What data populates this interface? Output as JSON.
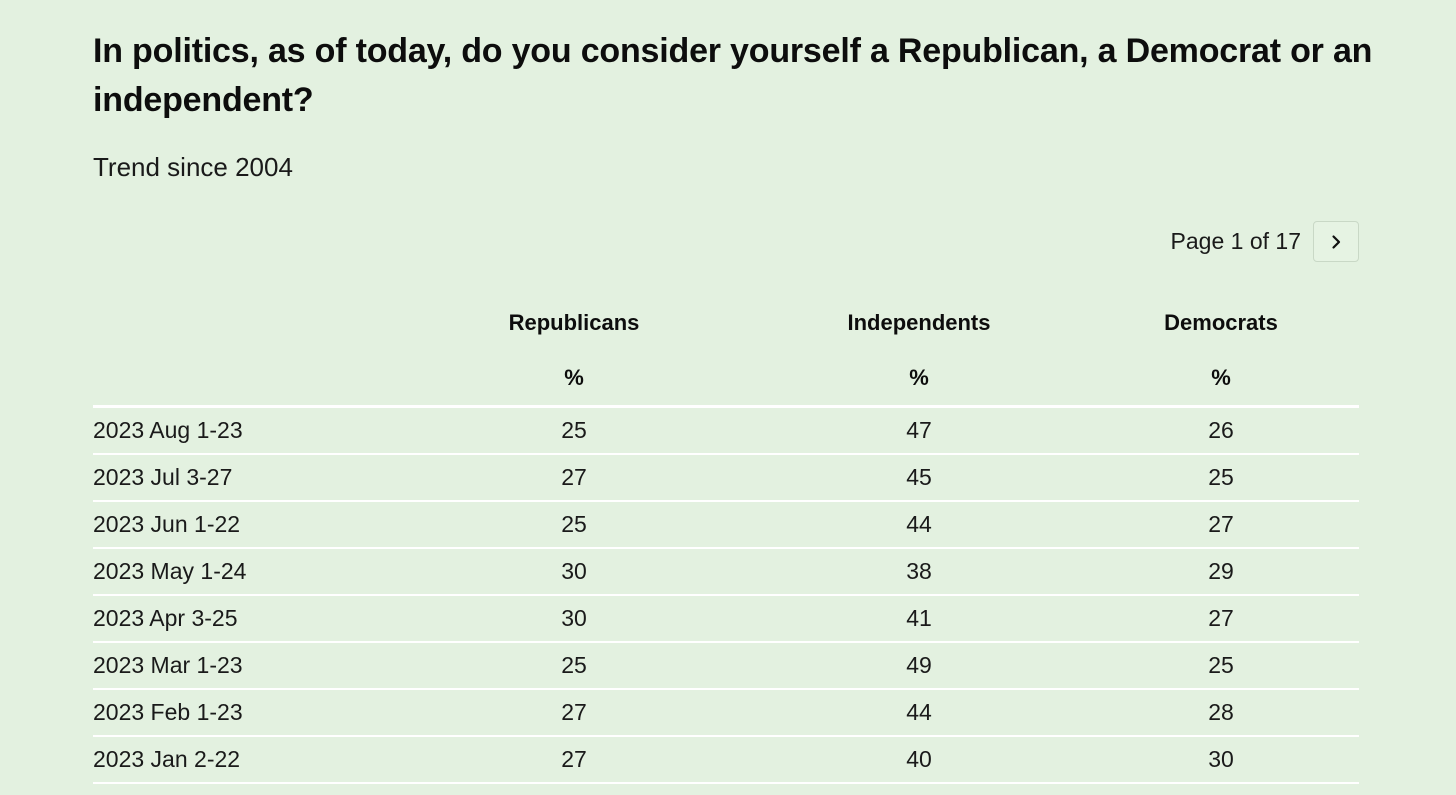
{
  "header": {
    "title": "In politics, as of today, do you consider yourself a Republican, a Democrat or an independent?",
    "subtitle": "Trend since 2004"
  },
  "pagination": {
    "label": "Page 1 of 17",
    "next_icon": "chevron-right-icon"
  },
  "table": {
    "columns": [
      "Republicans",
      "Independents",
      "Democrats"
    ],
    "unit": "%",
    "rows": [
      {
        "date": "2023 Aug 1-23",
        "republicans": "25",
        "independents": "47",
        "democrats": "26"
      },
      {
        "date": "2023 Jul 3-27",
        "republicans": "27",
        "independents": "45",
        "democrats": "25"
      },
      {
        "date": "2023 Jun 1-22",
        "republicans": "25",
        "independents": "44",
        "democrats": "27"
      },
      {
        "date": "2023 May 1-24",
        "republicans": "30",
        "independents": "38",
        "democrats": "29"
      },
      {
        "date": "2023 Apr 3-25",
        "republicans": "30",
        "independents": "41",
        "democrats": "27"
      },
      {
        "date": "2023 Mar 1-23",
        "republicans": "25",
        "independents": "49",
        "democrats": "25"
      },
      {
        "date": "2023 Feb 1-23",
        "republicans": "27",
        "independents": "44",
        "democrats": "28"
      },
      {
        "date": "2023 Jan 2-22",
        "republicans": "27",
        "independents": "40",
        "democrats": "30"
      }
    ]
  },
  "colors": {
    "background": "#e3f1e0",
    "row_divider": "#ffffff",
    "text": "#111111"
  }
}
